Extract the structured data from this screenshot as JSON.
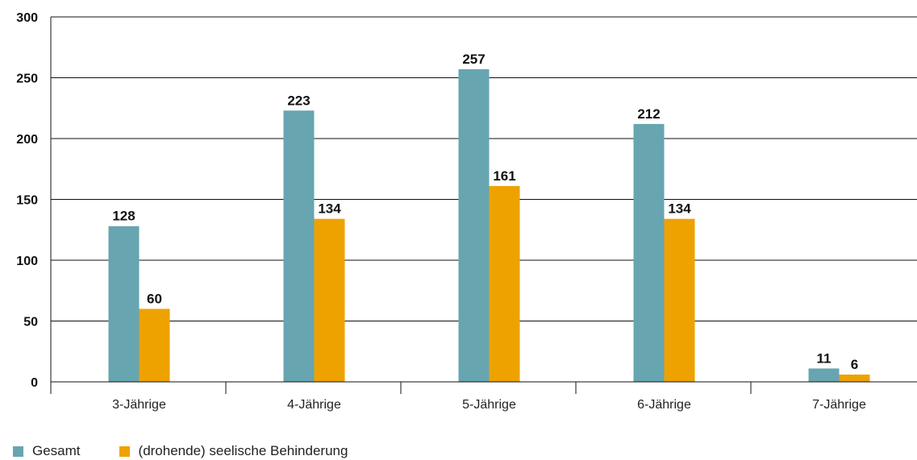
{
  "chart_data": {
    "type": "bar",
    "categories": [
      "3-Jährige",
      "4-Jährige",
      "5-Jährige",
      "6-Jährige",
      "7-Jährige"
    ],
    "series": [
      {
        "name": "Gesamt",
        "color": "#67a5b0",
        "values": [
          128,
          223,
          257,
          212,
          11
        ]
      },
      {
        "name": "(drohende) seelische Behinderung",
        "color": "#eea200",
        "values": [
          60,
          134,
          161,
          134,
          6
        ]
      }
    ],
    "title": "",
    "xlabel": "",
    "ylabel": "",
    "ylim": [
      0,
      300
    ],
    "yticks": [
      "0",
      "50",
      "100",
      "150",
      "200",
      "250",
      "300"
    ],
    "grid": true,
    "legend_position": "bottom-left",
    "data_labels": true
  }
}
